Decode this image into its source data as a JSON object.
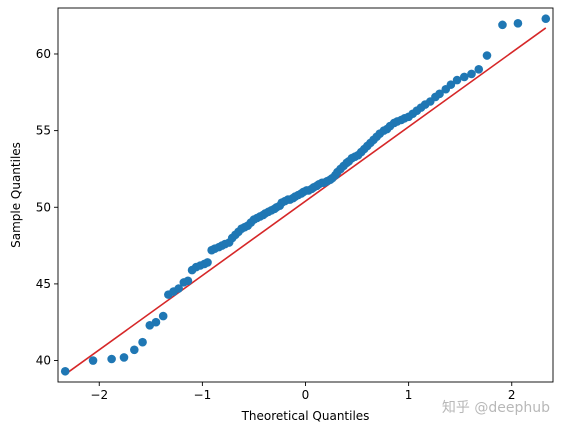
{
  "chart_data": {
    "type": "scatter",
    "title": "",
    "xlabel": "Theoretical Quantiles",
    "ylabel": "Sample Quantiles",
    "xlim": [
      -2.4,
      2.4
    ],
    "ylim": [
      38.6,
      63.0
    ],
    "xticks": [
      -2,
      -1,
      0,
      1,
      2
    ],
    "xtick_labels": [
      "−2",
      "−1",
      "0",
      "1",
      "2"
    ],
    "yticks": [
      40,
      45,
      50,
      55,
      60
    ],
    "ytick_labels": [
      "40",
      "45",
      "50",
      "55",
      "60"
    ],
    "grid": false,
    "legend": "none",
    "colors": {
      "points": "#1f77b4",
      "line": "#d62728"
    },
    "reference_line": {
      "x": [
        -2.33,
        2.33
      ],
      "y": [
        39.1,
        61.7
      ]
    },
    "points": {
      "x": [
        -2.33,
        -2.06,
        -1.88,
        -1.76,
        -1.66,
        -1.58,
        -1.51,
        -1.45,
        -1.38,
        -1.33,
        -1.28,
        -1.23,
        -1.18,
        -1.14,
        -1.1,
        -1.06,
        -1.02,
        -0.98,
        -0.95,
        -0.91,
        -0.88,
        -0.84,
        -0.81,
        -0.78,
        -0.74,
        -0.71,
        -0.68,
        -0.65,
        -0.62,
        -0.59,
        -0.56,
        -0.53,
        -0.5,
        -0.47,
        -0.44,
        -0.41,
        -0.39,
        -0.36,
        -0.33,
        -0.3,
        -0.28,
        -0.25,
        -0.23,
        -0.2,
        -0.17,
        -0.15,
        -0.12,
        -0.1,
        -0.07,
        -0.04,
        -0.02,
        0.01,
        0.03,
        0.06,
        0.08,
        0.11,
        0.13,
        0.16,
        0.18,
        0.21,
        0.24,
        0.26,
        0.29,
        0.31,
        0.34,
        0.37,
        0.4,
        0.42,
        0.45,
        0.48,
        0.51,
        0.54,
        0.57,
        0.6,
        0.63,
        0.66,
        0.69,
        0.72,
        0.76,
        0.79,
        0.82,
        0.86,
        0.89,
        0.93,
        0.96,
        1.0,
        1.04,
        1.08,
        1.12,
        1.16,
        1.21,
        1.26,
        1.3,
        1.36,
        1.41,
        1.47,
        1.54,
        1.61,
        1.68,
        1.76,
        1.91,
        2.06,
        2.33
      ],
      "y": [
        39.3,
        40.0,
        40.1,
        40.2,
        40.7,
        41.2,
        42.3,
        42.5,
        42.9,
        44.3,
        44.5,
        44.7,
        45.1,
        45.2,
        45.9,
        46.1,
        46.2,
        46.3,
        46.4,
        47.2,
        47.3,
        47.4,
        47.5,
        47.6,
        47.7,
        48.0,
        48.2,
        48.4,
        48.6,
        48.7,
        48.8,
        49.0,
        49.2,
        49.3,
        49.4,
        49.5,
        49.6,
        49.7,
        49.8,
        49.9,
        50.0,
        50.1,
        50.3,
        50.4,
        50.5,
        50.5,
        50.6,
        50.7,
        50.8,
        50.9,
        51.0,
        51.1,
        51.1,
        51.2,
        51.3,
        51.4,
        51.5,
        51.6,
        51.6,
        51.7,
        51.8,
        51.9,
        52.1,
        52.3,
        52.5,
        52.7,
        52.9,
        53.0,
        53.2,
        53.3,
        53.4,
        53.6,
        53.8,
        54.0,
        54.2,
        54.4,
        54.6,
        54.8,
        55.0,
        55.1,
        55.3,
        55.5,
        55.6,
        55.7,
        55.8,
        55.9,
        56.1,
        56.3,
        56.5,
        56.7,
        56.9,
        57.2,
        57.4,
        57.7,
        58.0,
        58.3,
        58.5,
        58.7,
        59.0,
        59.9,
        61.9,
        62.0,
        62.3
      ]
    }
  },
  "watermark": "知乎 @deephub"
}
